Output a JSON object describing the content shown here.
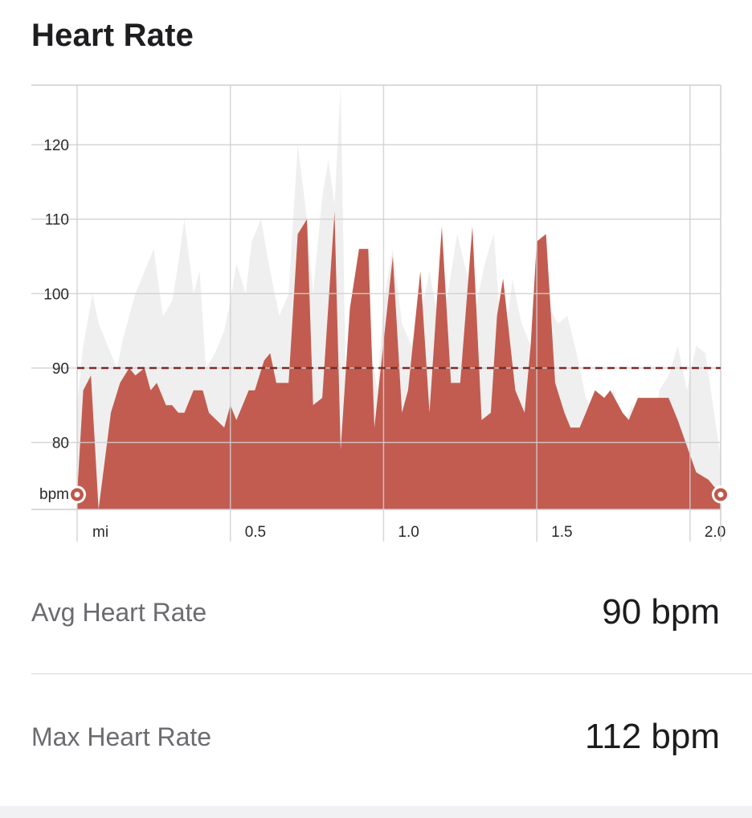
{
  "header": {
    "title": "Heart Rate"
  },
  "stats": [
    {
      "label": "Avg Heart Rate",
      "value": "90 bpm"
    },
    {
      "label": "Max Heart Rate",
      "value": "112 bpm"
    }
  ],
  "colors": {
    "primary_fill": "#c0574a",
    "primary_highlight": "#d4665a",
    "secondary_fill": "#efefef",
    "avg_line": "#7d2b25",
    "grid": "#cfcfd2"
  },
  "chart_data": {
    "type": "area",
    "title": "Heart Rate",
    "xlabel": "mi",
    "ylabel": "bpm",
    "xlim": [
      0,
      2.1
    ],
    "ylim": [
      71,
      128
    ],
    "xticks": [
      0,
      0.5,
      1.0,
      1.5,
      2.0
    ],
    "xtick_labels": [
      "mi",
      "0.5",
      "1.0",
      "1.5",
      "2.0"
    ],
    "yticks": [
      80,
      90,
      100,
      110,
      120
    ],
    "ytick_labels": [
      "80",
      "90",
      "100",
      "110",
      "120"
    ],
    "y_unit_label": "bpm",
    "average_line": 90,
    "grid": true,
    "series": [
      {
        "role": "current",
        "x": [
          0,
          0.02,
          0.045,
          0.07,
          0.11,
          0.14,
          0.17,
          0.19,
          0.22,
          0.24,
          0.26,
          0.29,
          0.31,
          0.33,
          0.35,
          0.38,
          0.41,
          0.43,
          0.48,
          0.5,
          0.52,
          0.56,
          0.58,
          0.61,
          0.63,
          0.65,
          0.67,
          0.69,
          0.72,
          0.75,
          0.77,
          0.8,
          0.84,
          0.86,
          0.89,
          0.92,
          0.95,
          0.97,
          1.03,
          1.06,
          1.08,
          1.12,
          1.15,
          1.19,
          1.22,
          1.25,
          1.29,
          1.32,
          1.35,
          1.37,
          1.39,
          1.43,
          1.46,
          1.48,
          1.5,
          1.53,
          1.56,
          1.59,
          1.61,
          1.64,
          1.66,
          1.69,
          1.72,
          1.74,
          1.78,
          1.8,
          1.83,
          1.87,
          1.9,
          1.93,
          1.96,
          2.02,
          2.06,
          2.1
        ],
        "values": [
          73,
          87,
          89,
          71,
          84,
          88,
          90,
          89,
          90,
          87,
          88,
          85,
          85,
          84,
          84,
          87,
          87,
          84,
          82,
          85,
          83,
          87,
          87,
          91,
          92,
          88,
          88,
          88,
          108,
          110,
          85,
          86,
          111,
          79,
          98,
          106,
          106,
          82,
          105,
          84,
          87,
          103,
          84,
          109,
          88,
          88,
          109,
          83,
          84,
          97,
          102,
          87,
          84,
          93,
          107,
          108,
          88,
          84,
          82,
          82,
          84,
          87,
          86,
          87,
          84,
          83,
          86,
          86,
          86,
          86,
          83,
          76,
          75,
          73
        ]
      },
      {
        "role": "comparison",
        "x": [
          0,
          0.02,
          0.05,
          0.07,
          0.1,
          0.13,
          0.15,
          0.17,
          0.19,
          0.22,
          0.25,
          0.28,
          0.31,
          0.33,
          0.35,
          0.38,
          0.4,
          0.42,
          0.45,
          0.48,
          0.5,
          0.52,
          0.55,
          0.57,
          0.6,
          0.63,
          0.66,
          0.69,
          0.72,
          0.75,
          0.77,
          0.8,
          0.82,
          0.84,
          0.86,
          0.88,
          0.9,
          0.93,
          0.95,
          0.98,
          1.0,
          1.03,
          1.06,
          1.09,
          1.12,
          1.15,
          1.18,
          1.21,
          1.24,
          1.27,
          1.3,
          1.33,
          1.36,
          1.39,
          1.42,
          1.45,
          1.48,
          1.51,
          1.54,
          1.57,
          1.6,
          1.63,
          1.66,
          1.69,
          1.72,
          1.75,
          1.78,
          1.81,
          1.84,
          1.87,
          1.9,
          1.93,
          1.96,
          1.99,
          2.02,
          2.05,
          2.1
        ],
        "values": [
          85,
          93,
          100,
          96,
          93,
          90,
          94,
          97,
          100,
          103,
          106,
          97,
          99,
          104,
          110,
          100,
          103,
          90,
          92,
          95,
          99,
          104,
          100,
          107,
          110,
          103,
          97,
          100,
          120,
          110,
          100,
          113,
          118,
          112,
          128,
          80,
          85,
          91,
          95,
          87,
          99,
          106,
          96,
          93,
          97,
          103,
          96,
          100,
          108,
          103,
          98,
          104,
          108,
          91,
          102,
          96,
          93,
          102,
          98,
          96,
          97,
          92,
          86,
          84,
          85,
          87,
          82,
          85,
          82,
          80,
          87,
          89,
          93,
          87,
          93,
          92,
          78
        ]
      }
    ]
  }
}
